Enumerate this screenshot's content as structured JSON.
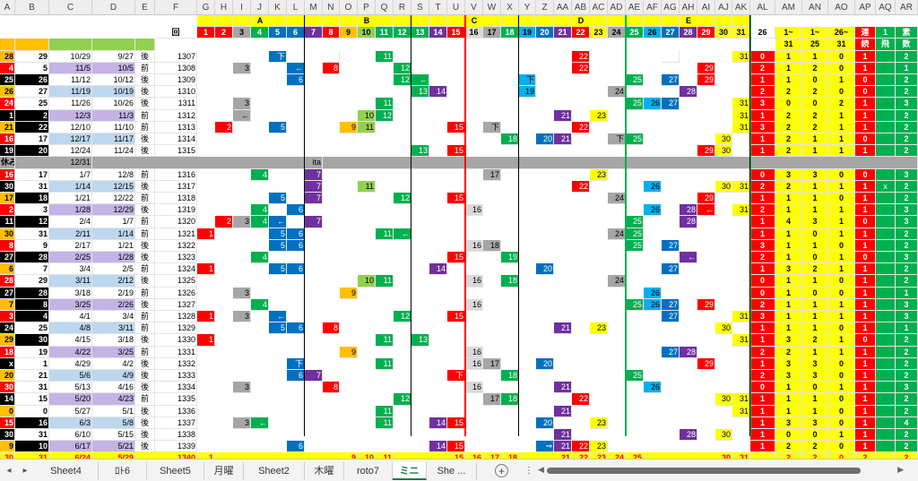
{
  "columns": [
    "A",
    "B",
    "C",
    "D",
    "E",
    "F",
    "G",
    "H",
    "I",
    "J",
    "K",
    "L",
    "M",
    "N",
    "O",
    "P",
    "Q",
    "R",
    "S",
    "T",
    "U",
    "V",
    "W",
    "X",
    "Y",
    "Z",
    "AA",
    "AB",
    "AC",
    "AD",
    "AE",
    "AF",
    "AG",
    "AH",
    "AI",
    "AJ",
    "AK",
    "AL",
    "AM",
    "AN",
    "AO",
    "AP",
    "AQ",
    "AR"
  ],
  "group_labels": {
    "A": "A",
    "B": "B",
    "C": "C",
    "D": "D",
    "E": "E"
  },
  "header_row1": {
    "F": "回",
    "G": "1",
    "H": "2",
    "I": "3",
    "J": "4",
    "K": "5",
    "L": "6",
    "M": "7",
    "N": "8",
    "O": "9",
    "P": "10",
    "Q": "11",
    "R": "12",
    "S": "13",
    "T": "14",
    "U": "15",
    "V": "16",
    "W": "17",
    "X": "18",
    "Y": "19",
    "Z": "20",
    "AA": "21",
    "AB": "22",
    "AC": "23",
    "AD": "24",
    "AE": "25",
    "AF": "26",
    "AG": "27",
    "AH": "28",
    "AI": "29",
    "AJ": "30",
    "AK": "31",
    "AL": "26",
    "AM": "1~",
    "AN": "1~",
    "AO": "26~",
    "AP": "連",
    "AQ": "1",
    "AR": "素"
  },
  "header_row2": {
    "AM": "31",
    "AN": "25",
    "AO": "31",
    "AP": "続",
    "AQ": "飛",
    "AR": "数"
  },
  "rows": [
    {
      "A": "28",
      "B": "29",
      "C": "10/29",
      "D": "9/27",
      "E": "後",
      "F": "1307",
      "Q": "11",
      "AB": "22",
      "AL": "0",
      "AM": "1",
      "AN": "1",
      "AO": "0",
      "AP": "1",
      "AR": "2",
      "K": "下",
      "N": "",
      "AG": "",
      "AK": "31"
    },
    {
      "A": "4",
      "B": "5",
      "C": "11/5",
      "D": "10/5",
      "E": "前",
      "F": "1308",
      "I": "3",
      "L": "←",
      "N": "8",
      "R": "12",
      "AB": "22",
      "AI": "29",
      "AL": "2",
      "AM": "1",
      "AN": "2",
      "AO": "0",
      "AP": "1",
      "AR": "1"
    },
    {
      "A": "25",
      "B": "26",
      "C": "11/12",
      "D": "10/12",
      "E": "後",
      "F": "1309",
      "L": "6",
      "R": "12",
      "S": "←",
      "Y": "下",
      "AE": "25",
      "AG": "27",
      "AI": "29",
      "AL": "1",
      "AM": "1",
      "AN": "0",
      "AO": "1",
      "AP": "0",
      "AR": "2"
    },
    {
      "A": "26",
      "B": "27",
      "C": "11/19",
      "D": "10/19",
      "E": "後",
      "F": "1310",
      "S": "13",
      "T": "14",
      "Y": "19",
      "AD": "24",
      "AH": "28",
      "AL": "2",
      "AM": "2",
      "AN": "2",
      "AO": "0",
      "AP": "0",
      "AR": "2"
    },
    {
      "A": "24",
      "B": "25",
      "C": "11/26",
      "D": "10/26",
      "E": "後",
      "F": "1311",
      "I": "3",
      "Q": "11",
      "AE": "25",
      "AF": "26",
      "AG": "27",
      "AK": "31",
      "AL": "3",
      "AM": "0",
      "AN": "0",
      "AO": "2",
      "AP": "1",
      "AR": "3"
    },
    {
      "A": "1",
      "B": "2",
      "C": "12/3",
      "D": "11/3",
      "E": "前",
      "F": "1312",
      "I": "←",
      "P": "10",
      "Q": "12",
      "AA": "21",
      "AC": "23",
      "AK": "31",
      "AL": "1",
      "AM": "2",
      "AN": "2",
      "AO": "1",
      "AP": "1",
      "AR": "2"
    },
    {
      "A": "21",
      "B": "22",
      "C": "12/10",
      "D": "11/10",
      "E": "前",
      "F": "1313",
      "H": "2",
      "K": "5",
      "O": "9",
      "P": "11",
      "U": "15",
      "W": "下",
      "AB": "22",
      "AK": "31",
      "AL": "3",
      "AM": "2",
      "AN": "2",
      "AO": "1",
      "AP": "1",
      "AR": "2"
    },
    {
      "A": "16",
      "B": "17",
      "C": "12/17",
      "D": "11/17",
      "E": "後",
      "F": "1314",
      "X": "18",
      "Z": "20",
      "AA": "21",
      "AD": "下",
      "AE": "25",
      "AJ": "30",
      "AL": "1",
      "AM": "2",
      "AN": "1",
      "AO": "1",
      "AP": "0",
      "AR": "2"
    },
    {
      "A": "19",
      "B": "20",
      "C": "12/24",
      "D": "11/24",
      "E": "後",
      "F": "1315",
      "S": "13",
      "U": "15",
      "AI": "29",
      "AJ": "30",
      "AL": "1",
      "AM": "2",
      "AN": "1",
      "AO": "1",
      "AP": "1",
      "AR": "2"
    },
    {
      "A": "休み",
      "C": "12/31",
      "M": "ita"
    },
    {
      "A": "16",
      "B": "17",
      "C": "1/7",
      "D": "12/8",
      "E": "前",
      "F": "1316",
      "J": "4",
      "M": "7",
      "W": "17",
      "AC": "23",
      "AL": "0",
      "AM": "3",
      "AN": "3",
      "AO": "0",
      "AP": "0",
      "AR": "3"
    },
    {
      "A": "30",
      "B": "31",
      "C": "1/14",
      "D": "12/15",
      "E": "後",
      "F": "1317",
      "M": "7",
      "P": "11",
      "AB": "22",
      "AF": "26",
      "AJ": "30",
      "AK": "31",
      "AL": "2",
      "AM": "2",
      "AN": "1",
      "AO": "1",
      "AP": "1",
      "AQ": "x",
      "AR": "2"
    },
    {
      "A": "17",
      "B": "18",
      "C": "1/21",
      "D": "12/22",
      "E": "前",
      "F": "1318",
      "K": "5",
      "M": "7",
      "R": "12",
      "U": "15",
      "AD": "24",
      "AI": "29",
      "AL": "1",
      "AM": "1",
      "AN": "1",
      "AO": "0",
      "AP": "1",
      "AR": "2"
    },
    {
      "A": "2",
      "B": "3",
      "C": "1/28",
      "D": "12/29",
      "E": "後",
      "F": "1319",
      "J": "4",
      "L": "6",
      "V": "16",
      "AF": "26",
      "AH": "28",
      "AI": "←",
      "AK": "31",
      "AL": "2",
      "AM": "1",
      "AN": "1",
      "AO": "1",
      "AP": "1",
      "AR": "3"
    },
    {
      "A": "11",
      "B": "12",
      "C": "2/4",
      "D": "1/7",
      "E": "前",
      "F": "1320",
      "H": "2",
      "I": "3",
      "J": "4",
      "K": "←",
      "M": "7",
      "AE": "25",
      "AH": "28",
      "AL": "1",
      "AM": "4",
      "AN": "3",
      "AO": "1",
      "AP": "0",
      "AR": "3"
    },
    {
      "A": "30",
      "B": "31",
      "C": "2/11",
      "D": "1/14",
      "E": "前",
      "F": "1321",
      "G": "1",
      "K": "5",
      "L": "6",
      "Q": "11",
      "R": "←",
      "AD": "24",
      "AE": "25",
      "AL": "1",
      "AM": "1",
      "AN": "0",
      "AO": "1",
      "AP": "1",
      "AR": "2"
    },
    {
      "A": "8",
      "B": "9",
      "C": "2/17",
      "D": "1/21",
      "E": "後",
      "F": "1322",
      "K": "5",
      "L": "6",
      "V": "16",
      "W": "18",
      "AE": "25",
      "AG": "27",
      "AL": "3",
      "AM": "1",
      "AN": "1",
      "AO": "0",
      "AP": "1",
      "AR": "2"
    },
    {
      "A": "27",
      "B": "28",
      "C": "2/25",
      "D": "1/28",
      "E": "後",
      "F": "1323",
      "J": "4",
      "U": "15",
      "X": "19",
      "AH": "←",
      "AL": "2",
      "AM": "1",
      "AN": "0",
      "AO": "1",
      "AP": "0",
      "AR": "3"
    },
    {
      "A": "6",
      "B": "7",
      "C": "3/4",
      "D": "2/5",
      "E": "前",
      "F": "1324",
      "G": "1",
      "K": "5",
      "L": "6",
      "T": "14",
      "Z": "20",
      "AG": "27",
      "AL": "1",
      "AM": "3",
      "AN": "2",
      "AO": "1",
      "AP": "1",
      "AR": "2"
    },
    {
      "A": "28",
      "B": "29",
      "C": "3/11",
      "D": "2/12",
      "E": "後",
      "F": "1325",
      "P": "10",
      "Q": "11",
      "V": "16",
      "X": "18",
      "AD": "24",
      "AL": "0",
      "AM": "1",
      "AN": "1",
      "AO": "0",
      "AP": "1",
      "AR": "2"
    },
    {
      "A": "27",
      "B": "28",
      "C": "3/18",
      "D": "2/19",
      "E": "前",
      "F": "1326",
      "I": "3",
      "O": "9",
      "AF": "26",
      "AL": "0",
      "AM": "1",
      "AN": "0",
      "AO": "0",
      "AP": "1",
      "AR": "1"
    },
    {
      "A": "7",
      "B": "8",
      "C": "3/25",
      "D": "2/26",
      "E": "後",
      "F": "1327",
      "J": "4",
      "V": "16",
      "AE": "25",
      "AF": "26",
      "AG": "27",
      "AI": "29",
      "AL": "2",
      "AM": "1",
      "AN": "1",
      "AO": "1",
      "AP": "1",
      "AR": "3"
    },
    {
      "A": "3",
      "B": "4",
      "C": "4/1",
      "D": "3/4",
      "E": "前",
      "F": "1328",
      "G": "1",
      "I": "3",
      "K": "←",
      "R": "12",
      "U": "15",
      "AG": "27",
      "AK": "31",
      "AL": "3",
      "AM": "1",
      "AN": "1",
      "AO": "1",
      "AP": "1",
      "AR": "3"
    },
    {
      "A": "24",
      "B": "25",
      "C": "4/8",
      "D": "3/11",
      "E": "前",
      "F": "1329",
      "K": "5",
      "L": "6",
      "N": "8",
      "AA": "21",
      "AC": "23",
      "AJ": "30",
      "AL": "1",
      "AM": "1",
      "AN": "1",
      "AO": "0",
      "AP": "1",
      "AR": "1"
    },
    {
      "A": "29",
      "B": "30",
      "C": "4/15",
      "D": "3/18",
      "E": "後",
      "F": "1330",
      "G": "1",
      "Q": "11",
      "S": "13",
      "AK": "31",
      "AL": "1",
      "AM": "3",
      "AN": "2",
      "AO": "1",
      "AP": "0",
      "AR": "2"
    },
    {
      "A": "18",
      "B": "19",
      "C": "4/22",
      "D": "3/25",
      "E": "前",
      "F": "1331",
      "O": "9",
      "V": "16",
      "AG": "27",
      "AH": "28",
      "AL": "2",
      "AM": "2",
      "AN": "1",
      "AO": "1",
      "AP": "1",
      "AR": "2"
    },
    {
      "A": "x",
      "B": "1",
      "C": "4/29",
      "D": "4/2",
      "E": "後",
      "F": "1332",
      "L": "下",
      "Q": "11",
      "V": "16",
      "W": "17",
      "Z": "20",
      "AI": "29",
      "AL": "1",
      "AM": "3",
      "AN": "3",
      "AO": "0",
      "AP": "1",
      "AR": "2"
    },
    {
      "A": "20",
      "B": "21",
      "C": "5/6",
      "D": "4/9",
      "E": "後",
      "F": "1333",
      "L": "6",
      "M": "7",
      "U": "下",
      "X": "18",
      "AE": "25",
      "AL": "2",
      "AM": "3",
      "AN": "3",
      "AO": "0",
      "AP": "1",
      "AR": "2"
    },
    {
      "A": "30",
      "B": "31",
      "C": "5/13",
      "D": "4/16",
      "E": "後",
      "F": "1334",
      "I": "3",
      "N": "8",
      "V": "16",
      "AA": "21",
      "AF": "26",
      "AL": "0",
      "AM": "1",
      "AN": "0",
      "AO": "1",
      "AP": "1",
      "AR": "3"
    },
    {
      "A": "14",
      "B": "15",
      "C": "5/20",
      "D": "4/23",
      "E": "前",
      "F": "1335",
      "R": "12",
      "W": "17",
      "X": "18",
      "AB": "22",
      "AJ": "30",
      "AK": "31",
      "AL": "1",
      "AM": "1",
      "AN": "1",
      "AO": "0",
      "AP": "1",
      "AR": "2"
    },
    {
      "A": "0",
      "B": "0",
      "C": "5/27",
      "D": "5/1",
      "E": "後",
      "F": "1336",
      "Q": "11",
      "AA": "21",
      "AK": "31",
      "AL": "1",
      "AM": "1",
      "AN": "1",
      "AO": "0",
      "AP": "1",
      "AR": "2"
    },
    {
      "A": "15",
      "B": "16",
      "C": "6/3",
      "D": "5/8",
      "E": "後",
      "F": "1337",
      "I": "3",
      "J": "←",
      "Q": "11",
      "T": "14",
      "U": "15",
      "Z": "20",
      "AC": "23",
      "AL": "1",
      "AM": "3",
      "AN": "3",
      "AO": "0",
      "AP": "1",
      "AR": "4"
    },
    {
      "A": "30",
      "B": "31",
      "C": "6/10",
      "D": "5/15",
      "E": "後",
      "F": "1338",
      "AA": "21",
      "AH": "28",
      "AJ": "30",
      "AL": "1",
      "AM": "0",
      "AN": "0",
      "AO": "1",
      "AP": "1",
      "AR": "2"
    },
    {
      "A": "9",
      "B": "10",
      "C": "6/17",
      "D": "5/21",
      "E": "後",
      "F": "1339",
      "L": "6",
      "T": "14",
      "U": "15",
      "Z": "⇒",
      "AA": "21",
      "AB": "22",
      "AC": "23",
      "AL": "1",
      "AM": "2",
      "AN": "2",
      "AO": "0",
      "AP": "1",
      "AR": "2"
    },
    {
      "A": "30",
      "B": "31",
      "C": "6/24",
      "D": "5/29",
      "F": "1340",
      "G": "1",
      "O": "9",
      "P": "10",
      "Q": "11",
      "U": "15",
      "V": "16",
      "W": "17",
      "X": "18",
      "AA": "21",
      "AB": "22",
      "AC": "23",
      "AD": "24",
      "AE": "25",
      "AJ": "30",
      "AK": "31",
      "AM": "2",
      "AN": "2",
      "AO": "0",
      "AP": "2",
      "AR": "2"
    }
  ],
  "tabs": [
    "Sheet4",
    "ﾛﾄ6",
    "Sheet5",
    "月曜",
    "Sheet2",
    "木曜",
    "roto7",
    "ミニ",
    "She ..."
  ],
  "active_tab": "ミニ",
  "nav": {
    "prev": "◂",
    "next": "▸",
    "add": "+",
    "more": "⋮"
  },
  "colors": {
    "yellow": "#ffff00",
    "red": "#ff0000",
    "green": "#00b050",
    "blue": "#0070c0",
    "cyan": "#00b0f0",
    "gray": "#a6a6a6",
    "orange": "#ffc000",
    "lime": "#92d050",
    "purple": "#7030a0",
    "pink": "#ff99cc",
    "light": "#d9d9d9"
  }
}
